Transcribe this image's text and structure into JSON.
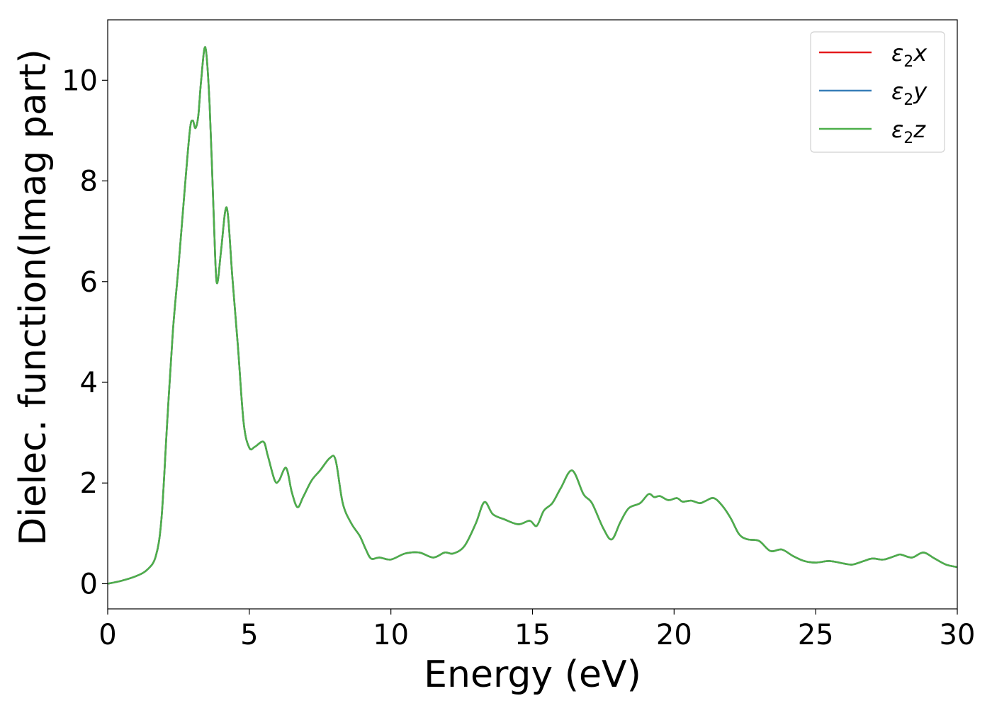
{
  "chart_data": {
    "type": "line",
    "title": "",
    "xlabel": "Energy (eV)",
    "ylabel": "Dielec. function(Imag part)",
    "xlim": [
      0,
      30
    ],
    "ylim": [
      -0.5,
      11.2
    ],
    "xticks": [
      0,
      5,
      10,
      15,
      20,
      25,
      30
    ],
    "yticks": [
      0,
      2,
      4,
      6,
      8,
      10
    ],
    "grid": false,
    "legend_position": "top-right",
    "x": [
      0,
      0.5,
      1.0,
      1.4,
      1.7,
      1.9,
      2.1,
      2.3,
      2.5,
      2.7,
      2.9,
      3.0,
      3.1,
      3.2,
      3.3,
      3.45,
      3.6,
      3.75,
      3.85,
      4.0,
      4.15,
      4.25,
      4.4,
      4.6,
      4.8,
      5.0,
      5.2,
      5.5,
      5.65,
      5.9,
      6.05,
      6.3,
      6.5,
      6.7,
      6.9,
      7.2,
      7.5,
      7.85,
      8.05,
      8.3,
      8.6,
      8.9,
      9.1,
      9.3,
      9.6,
      10.0,
      10.5,
      11.0,
      11.5,
      11.9,
      12.2,
      12.6,
      13.0,
      13.3,
      13.6,
      14.0,
      14.5,
      14.9,
      15.15,
      15.4,
      15.7,
      16.0,
      16.4,
      16.8,
      17.1,
      17.5,
      17.8,
      18.1,
      18.4,
      18.8,
      19.1,
      19.3,
      19.5,
      19.8,
      20.1,
      20.3,
      20.6,
      20.9,
      21.1,
      21.4,
      21.7,
      22.0,
      22.3,
      22.6,
      23.0,
      23.4,
      23.8,
      24.2,
      24.6,
      25.0,
      25.5,
      26.0,
      26.3,
      26.7,
      27.0,
      27.4,
      27.8,
      28.0,
      28.4,
      28.8,
      29.2,
      29.6,
      30.0
    ],
    "series": [
      {
        "name": "ε₂x",
        "color": "#e41a1c",
        "values": [
          0,
          0.06,
          0.15,
          0.28,
          0.55,
          1.3,
          3.2,
          5.0,
          6.3,
          7.7,
          9.0,
          9.2,
          9.05,
          9.3,
          10.0,
          10.65,
          9.5,
          7.2,
          5.98,
          6.6,
          7.4,
          7.3,
          6.1,
          4.7,
          3.2,
          2.7,
          2.72,
          2.82,
          2.55,
          2.05,
          2.05,
          2.3,
          1.82,
          1.52,
          1.72,
          2.05,
          2.25,
          2.5,
          2.45,
          1.6,
          1.2,
          0.95,
          0.7,
          0.5,
          0.52,
          0.48,
          0.6,
          0.62,
          0.52,
          0.62,
          0.6,
          0.75,
          1.2,
          1.62,
          1.38,
          1.28,
          1.18,
          1.25,
          1.15,
          1.45,
          1.6,
          1.9,
          2.25,
          1.78,
          1.6,
          1.1,
          0.88,
          1.22,
          1.5,
          1.6,
          1.78,
          1.72,
          1.74,
          1.66,
          1.7,
          1.63,
          1.65,
          1.6,
          1.64,
          1.7,
          1.55,
          1.3,
          0.98,
          0.88,
          0.85,
          0.65,
          0.68,
          0.55,
          0.45,
          0.42,
          0.45,
          0.4,
          0.38,
          0.45,
          0.5,
          0.48,
          0.55,
          0.58,
          0.52,
          0.62,
          0.5,
          0.38,
          0.33
        ]
      },
      {
        "name": "ε₂y",
        "color": "#377eb8",
        "values": [
          0,
          0.06,
          0.15,
          0.28,
          0.55,
          1.3,
          3.2,
          5.0,
          6.3,
          7.7,
          9.0,
          9.2,
          9.05,
          9.3,
          10.0,
          10.65,
          9.5,
          7.2,
          5.98,
          6.6,
          7.4,
          7.3,
          6.1,
          4.7,
          3.2,
          2.7,
          2.72,
          2.82,
          2.55,
          2.05,
          2.05,
          2.3,
          1.82,
          1.52,
          1.72,
          2.05,
          2.25,
          2.5,
          2.45,
          1.6,
          1.2,
          0.95,
          0.7,
          0.5,
          0.52,
          0.48,
          0.6,
          0.62,
          0.52,
          0.62,
          0.6,
          0.75,
          1.2,
          1.62,
          1.38,
          1.28,
          1.18,
          1.25,
          1.15,
          1.45,
          1.6,
          1.9,
          2.25,
          1.78,
          1.6,
          1.1,
          0.88,
          1.22,
          1.5,
          1.6,
          1.78,
          1.72,
          1.74,
          1.66,
          1.7,
          1.63,
          1.65,
          1.6,
          1.64,
          1.7,
          1.55,
          1.3,
          0.98,
          0.88,
          0.85,
          0.65,
          0.68,
          0.55,
          0.45,
          0.42,
          0.45,
          0.4,
          0.38,
          0.45,
          0.5,
          0.48,
          0.55,
          0.58,
          0.52,
          0.62,
          0.5,
          0.38,
          0.33
        ]
      },
      {
        "name": "ε₂z",
        "color": "#4daf4a",
        "values": [
          0,
          0.06,
          0.15,
          0.28,
          0.55,
          1.3,
          3.2,
          5.0,
          6.3,
          7.7,
          9.0,
          9.2,
          9.05,
          9.3,
          10.0,
          10.65,
          9.5,
          7.2,
          5.98,
          6.6,
          7.4,
          7.3,
          6.1,
          4.7,
          3.2,
          2.7,
          2.72,
          2.82,
          2.55,
          2.05,
          2.05,
          2.3,
          1.82,
          1.52,
          1.72,
          2.05,
          2.25,
          2.5,
          2.45,
          1.6,
          1.2,
          0.95,
          0.7,
          0.5,
          0.52,
          0.48,
          0.6,
          0.62,
          0.52,
          0.62,
          0.6,
          0.75,
          1.2,
          1.62,
          1.38,
          1.28,
          1.18,
          1.25,
          1.15,
          1.45,
          1.6,
          1.9,
          2.25,
          1.78,
          1.6,
          1.1,
          0.88,
          1.22,
          1.5,
          1.6,
          1.78,
          1.72,
          1.74,
          1.66,
          1.7,
          1.63,
          1.65,
          1.6,
          1.64,
          1.7,
          1.55,
          1.3,
          0.98,
          0.88,
          0.85,
          0.65,
          0.68,
          0.55,
          0.45,
          0.42,
          0.45,
          0.4,
          0.38,
          0.45,
          0.5,
          0.48,
          0.55,
          0.58,
          0.52,
          0.62,
          0.5,
          0.38,
          0.33
        ]
      }
    ],
    "legend": [
      {
        "base": "ε",
        "sub": "2",
        "suffix": "x"
      },
      {
        "base": "ε",
        "sub": "2",
        "suffix": "y"
      },
      {
        "base": "ε",
        "sub": "2",
        "suffix": "z"
      }
    ]
  }
}
